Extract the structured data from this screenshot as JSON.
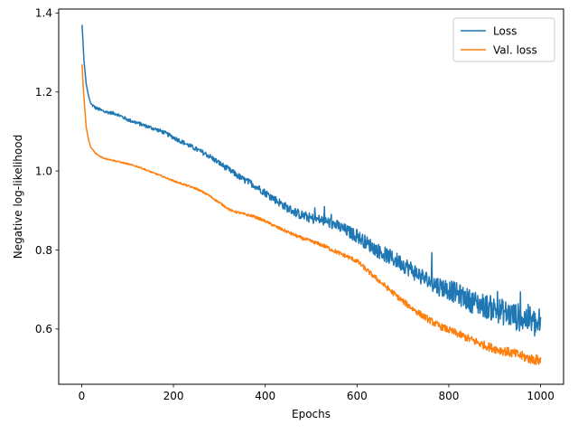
{
  "chart_data": {
    "type": "line",
    "xlabel": "Epochs",
    "ylabel": "Negative log-likelihood",
    "xlim": [
      -50,
      1050
    ],
    "ylim": [
      0.46,
      1.41
    ],
    "x_ticks": [
      0,
      200,
      400,
      600,
      800,
      1000
    ],
    "y_ticks": [
      0.6,
      0.8,
      1.0,
      1.2,
      1.4
    ],
    "grid": false,
    "legend_position": "top-right",
    "series": [
      {
        "name": "Loss",
        "color": "#1f77b4",
        "noise": "high",
        "x": [
          1,
          5,
          10,
          15,
          20,
          30,
          40,
          50,
          75,
          100,
          125,
          150,
          175,
          200,
          225,
          250,
          275,
          300,
          325,
          350,
          375,
          400,
          425,
          450,
          475,
          500,
          525,
          550,
          575,
          600,
          625,
          650,
          675,
          700,
          725,
          750,
          775,
          800,
          825,
          850,
          875,
          900,
          925,
          950,
          975,
          1000
        ],
        "y": [
          1.37,
          1.28,
          1.22,
          1.19,
          1.17,
          1.16,
          1.155,
          1.15,
          1.145,
          1.13,
          1.12,
          1.11,
          1.1,
          1.085,
          1.07,
          1.055,
          1.04,
          1.02,
          1.0,
          0.98,
          0.965,
          0.945,
          0.925,
          0.905,
          0.89,
          0.88,
          0.875,
          0.865,
          0.85,
          0.835,
          0.815,
          0.795,
          0.78,
          0.765,
          0.745,
          0.725,
          0.71,
          0.7,
          0.685,
          0.67,
          0.66,
          0.65,
          0.64,
          0.63,
          0.625,
          0.6
        ]
      },
      {
        "name": "Val. loss",
        "color": "#ff7f0e",
        "noise": "low",
        "x": [
          1,
          3,
          6,
          10,
          15,
          20,
          30,
          40,
          50,
          75,
          100,
          125,
          150,
          175,
          200,
          225,
          250,
          275,
          300,
          325,
          350,
          375,
          400,
          425,
          450,
          475,
          500,
          525,
          550,
          575,
          600,
          625,
          650,
          675,
          700,
          725,
          750,
          775,
          800,
          825,
          850,
          875,
          900,
          925,
          950,
          975,
          1000
        ],
        "y": [
          1.27,
          1.22,
          1.17,
          1.11,
          1.08,
          1.06,
          1.045,
          1.037,
          1.032,
          1.025,
          1.018,
          1.01,
          0.998,
          0.987,
          0.975,
          0.965,
          0.955,
          0.94,
          0.92,
          0.9,
          0.892,
          0.885,
          0.873,
          0.858,
          0.845,
          0.832,
          0.822,
          0.812,
          0.798,
          0.785,
          0.772,
          0.745,
          0.72,
          0.695,
          0.67,
          0.648,
          0.628,
          0.61,
          0.597,
          0.585,
          0.572,
          0.56,
          0.55,
          0.543,
          0.535,
          0.525,
          0.52
        ]
      }
    ]
  }
}
